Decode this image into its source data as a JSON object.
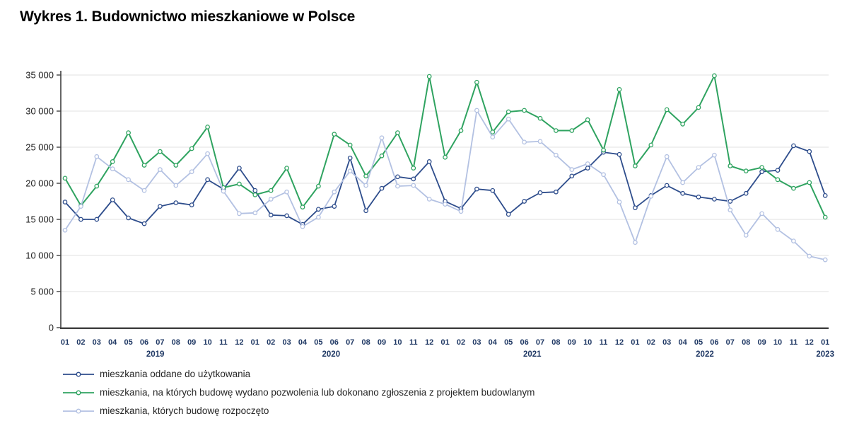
{
  "title": "Wykres 1. Budownictwo mieszkaniowe w Polsce",
  "chart_data": {
    "type": "line",
    "title": "Wykres 1. Budownictwo mieszkaniowe w Polsce",
    "xlabel": "",
    "ylabel": "",
    "ylim": [
      0,
      35000
    ],
    "y_tick_step": 5000,
    "y_ticks": [
      "0",
      "5 000",
      "10 000",
      "15 000",
      "20 000",
      "25 000",
      "30 000",
      "35 000"
    ],
    "grid": "horizontal",
    "legend_position": "bottom-left",
    "x_labels": [
      "01",
      "02",
      "03",
      "04",
      "05",
      "06",
      "07",
      "08",
      "09",
      "10",
      "11",
      "12",
      "01",
      "02",
      "03",
      "04",
      "05",
      "06",
      "07",
      "08",
      "09",
      "10",
      "11",
      "12",
      "01",
      "02",
      "03",
      "04",
      "05",
      "06",
      "07",
      "08",
      "09",
      "10",
      "11",
      "12",
      "01",
      "02",
      "03",
      "04",
      "05",
      "06",
      "07",
      "08",
      "09",
      "10",
      "11",
      "12",
      "01"
    ],
    "year_labels": [
      {
        "label": "2019",
        "x_index": 5.7
      },
      {
        "label": "2020",
        "x_index": 16.8
      },
      {
        "label": "2021",
        "x_index": 29.5
      },
      {
        "label": "2022",
        "x_index": 40.4
      },
      {
        "label": "2023",
        "x_index": 48
      }
    ],
    "series": [
      {
        "name": "mieszkania oddane do użytkowania",
        "color": "#2e4d8c",
        "marker": "circle",
        "values": [
          17400,
          15000,
          15000,
          17700,
          15200,
          14400,
          16800,
          17300,
          17000,
          20500,
          19200,
          22100,
          19000,
          15600,
          15500,
          14300,
          16400,
          16800,
          23500,
          16200,
          19300,
          20900,
          20600,
          23000,
          17500,
          16500,
          19200,
          19000,
          15700,
          17500,
          18700,
          18800,
          21000,
          22100,
          24300,
          24000,
          16600,
          18300,
          19700,
          18600,
          18100,
          17800,
          17500,
          18600,
          21600,
          21800,
          25200,
          24400,
          18300
        ]
      },
      {
        "name": "mieszkania, na których budowę wydano pozwolenia lub dokonano zgłoszenia z projektem budowlanym",
        "color": "#2fa360",
        "marker": "circle",
        "values": [
          20700,
          16900,
          19600,
          23000,
          27000,
          22500,
          24400,
          22500,
          24800,
          27800,
          19400,
          19900,
          18400,
          19000,
          22100,
          16700,
          19600,
          26800,
          25300,
          21000,
          23800,
          27000,
          22100,
          34800,
          23600,
          27300,
          34000,
          27100,
          29900,
          30100,
          29000,
          27300,
          27300,
          28800,
          24600,
          33000,
          22400,
          25300,
          30200,
          28200,
          30500,
          34900,
          22400,
          21700,
          22200,
          20500,
          19300,
          20100,
          15300
        ]
      },
      {
        "name": "mieszkania, których budowę rozpoczęto",
        "color": "#b3c1e2",
        "marker": "circle",
        "values": [
          13500,
          16800,
          23700,
          22000,
          20500,
          19000,
          21900,
          19700,
          21600,
          24100,
          18900,
          15800,
          15900,
          17800,
          18800,
          14000,
          15300,
          18800,
          21700,
          19700,
          26300,
          19600,
          19700,
          17800,
          17100,
          16100,
          30100,
          26400,
          28900,
          25700,
          25800,
          23900,
          21900,
          22700,
          21200,
          17400,
          11800,
          18200,
          23700,
          20100,
          22200,
          23900,
          16300,
          12800,
          15800,
          13600,
          12000,
          9900,
          9400
        ]
      }
    ],
    "style": {
      "axis_color": "#3f3f3f",
      "grid_color": "#e2e2e2",
      "month_label_color": "#1f3864",
      "y_label_color": "#1a1a1a"
    }
  }
}
